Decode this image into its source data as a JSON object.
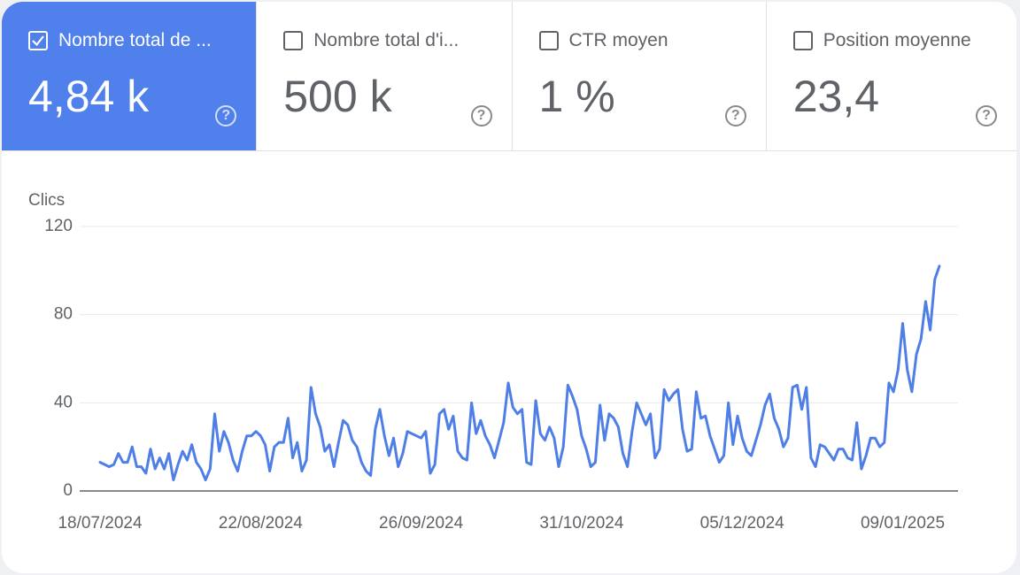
{
  "cards": [
    {
      "label": "Nombre total de ...",
      "value": "4,84 k",
      "selected": true
    },
    {
      "label": "Nombre total d'i...",
      "value": "500 k",
      "selected": false
    },
    {
      "label": "CTR moyen",
      "value": "1 %",
      "selected": false
    },
    {
      "label": "Position moyenne",
      "value": "23,4",
      "selected": false
    }
  ],
  "chart_data": {
    "type": "line",
    "ylabel": "Clics",
    "color": "#4f7fe6",
    "grid": true,
    "ylim": [
      0,
      120
    ],
    "yticks": [
      0,
      40,
      80,
      120
    ],
    "categories": [
      "18/07/2024",
      null,
      null,
      null,
      null,
      null,
      null,
      null,
      null,
      null,
      null,
      null,
      null,
      null,
      null,
      null,
      null,
      null,
      null,
      null,
      null,
      null,
      null,
      null,
      null,
      null,
      null,
      null,
      null,
      null,
      null,
      null,
      null,
      null,
      null,
      "22/08/2024",
      null,
      null,
      null,
      null,
      null,
      null,
      null,
      null,
      null,
      null,
      null,
      null,
      null,
      null,
      null,
      null,
      null,
      null,
      null,
      null,
      null,
      null,
      null,
      null,
      null,
      null,
      null,
      null,
      null,
      null,
      null,
      null,
      null,
      null,
      "26/09/2024",
      null,
      null,
      null,
      null,
      null,
      null,
      null,
      null,
      null,
      null,
      null,
      null,
      null,
      null,
      null,
      null,
      null,
      null,
      null,
      null,
      null,
      null,
      null,
      null,
      null,
      null,
      null,
      null,
      null,
      null,
      null,
      null,
      null,
      null,
      "31/10/2024",
      null,
      null,
      null,
      null,
      null,
      null,
      null,
      null,
      null,
      null,
      null,
      null,
      null,
      null,
      null,
      null,
      null,
      null,
      null,
      null,
      null,
      null,
      null,
      null,
      null,
      null,
      null,
      null,
      null,
      null,
      null,
      null,
      null,
      null,
      "05/12/2024",
      null,
      null,
      null,
      null,
      null,
      null,
      null,
      null,
      null,
      null,
      null,
      null,
      null,
      null,
      null,
      null,
      null,
      null,
      null,
      null,
      null,
      null,
      null,
      null,
      null,
      null,
      null,
      null,
      null,
      null,
      null,
      null,
      null,
      null,
      "09/01/2025",
      null,
      null,
      null,
      null,
      null,
      null,
      null,
      null
    ],
    "values": [
      13,
      12,
      11,
      12,
      17,
      13,
      13,
      20,
      11,
      11,
      8,
      19,
      10,
      15,
      10,
      17,
      5,
      12,
      18,
      14,
      21,
      13,
      10,
      5,
      10,
      35,
      18,
      27,
      22,
      14,
      9,
      18,
      25,
      25,
      27,
      25,
      21,
      9,
      20,
      22,
      22,
      33,
      15,
      22,
      9,
      14,
      47,
      35,
      29,
      18,
      21,
      11,
      22,
      32,
      30,
      23,
      20,
      13,
      9,
      7,
      28,
      37,
      25,
      16,
      24,
      11,
      17,
      27,
      26,
      25,
      24,
      27,
      8,
      12,
      35,
      37,
      28,
      34,
      18,
      15,
      14,
      40,
      26,
      32,
      25,
      21,
      15,
      23,
      31,
      49,
      38,
      35,
      37,
      13,
      12,
      41,
      26,
      23,
      29,
      24,
      11,
      20,
      48,
      43,
      37,
      25,
      19,
      11,
      13,
      39,
      23,
      35,
      33,
      29,
      17,
      11,
      27,
      40,
      35,
      30,
      35,
      15,
      19,
      46,
      41,
      44,
      46,
      28,
      18,
      19,
      45,
      33,
      34,
      25,
      19,
      13,
      16,
      40,
      21,
      34,
      24,
      18,
      16,
      23,
      30,
      39,
      44,
      33,
      28,
      20,
      24,
      47,
      48,
      37,
      47,
      15,
      11,
      21,
      20,
      17,
      14,
      19,
      19,
      15,
      14,
      31,
      10,
      16,
      24,
      24,
      20,
      22,
      49,
      45,
      55,
      76,
      55,
      45,
      62,
      69,
      86,
      73,
      96,
      102
    ]
  }
}
